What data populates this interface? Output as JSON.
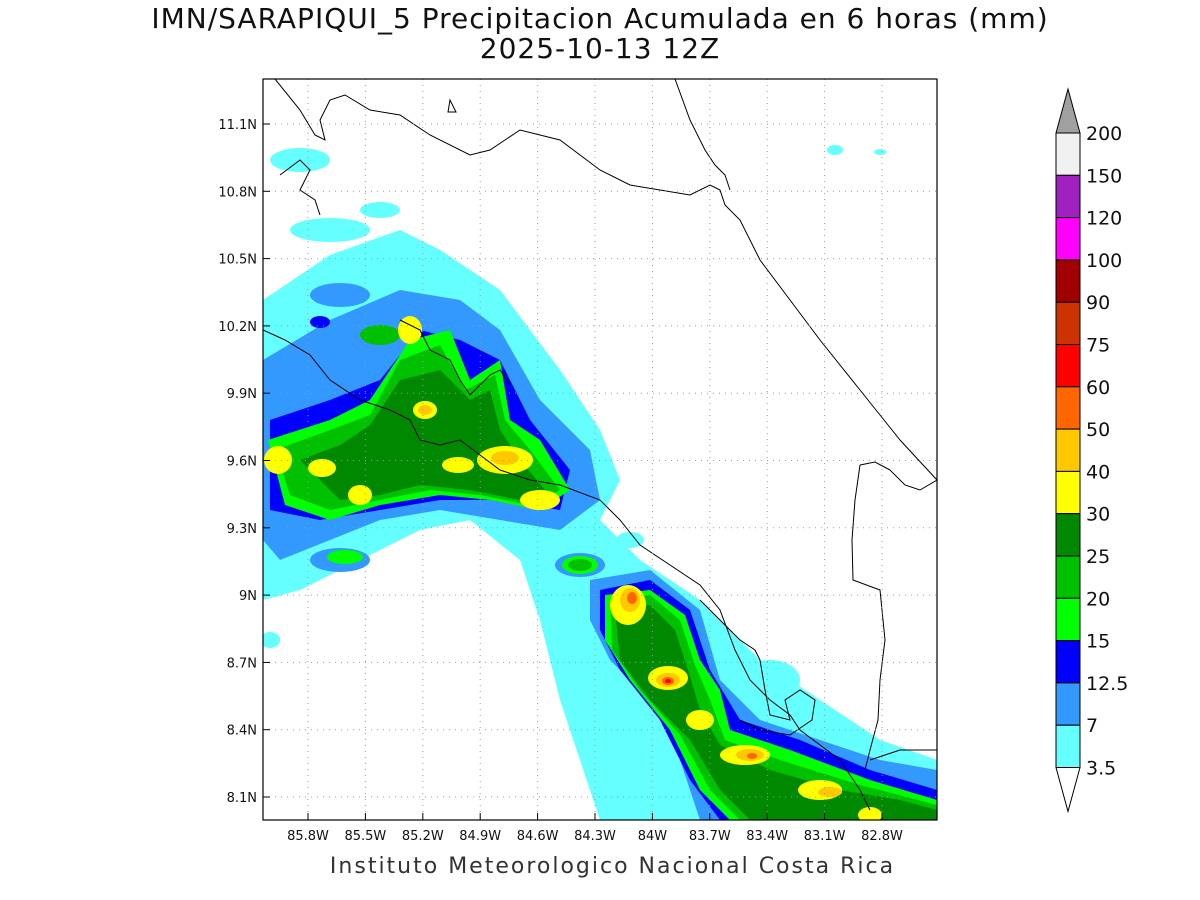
{
  "title": {
    "line1": "IMN/SARAPIQUI_5 Precipitacion Acumulada en 6 horas (mm)",
    "line2": "2025-10-13 12Z"
  },
  "footer": "Instituto Meteorologico Nacional Costa Rica",
  "map": {
    "lon_ticks": [
      "85.8W",
      "85.5W",
      "85.2W",
      "84.9W",
      "84.6W",
      "84.3W",
      "84W",
      "83.7W",
      "83.4W",
      "83.1W",
      "82.8W"
    ],
    "lat_ticks": [
      "11.1N",
      "10.8N",
      "10.5N",
      "10.2N",
      "9.9N",
      "9.6N",
      "9.3N",
      "9N",
      "8.7N",
      "8.4N",
      "8.1N"
    ]
  },
  "colorbar": {
    "levels": [
      "200",
      "150",
      "120",
      "100",
      "90",
      "75",
      "60",
      "50",
      "40",
      "30",
      "25",
      "20",
      "15",
      "12.5",
      "7",
      "3.5"
    ],
    "colors": [
      "#f0f0f0",
      "#a020c0",
      "#ff00ff",
      "#a00000",
      "#cc3300",
      "#ff0000",
      "#ff6600",
      "#ffc800",
      "#ffff00",
      "#008800",
      "#00c000",
      "#00ff00",
      "#0000ff",
      "#3399ff",
      "#66ffff"
    ],
    "over_color": "#a0a0a0",
    "under_color": "#ffffff"
  }
}
